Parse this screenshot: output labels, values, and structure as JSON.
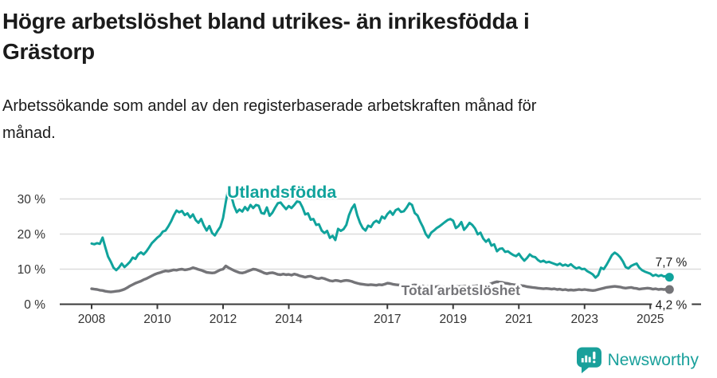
{
  "title_lines": [
    "Högre arbetslöshet bland utrikes- än inrikesfödda i",
    "Grästorp"
  ],
  "subtitle_lines": [
    "Arbetssökande som andel av den registerbaserade arbetskraften månad för",
    "månad."
  ],
  "branding": {
    "name": "Newsworthy"
  },
  "colors": {
    "foreign": "#10a39c",
    "total": "#747478",
    "grid": "#dcdcdc",
    "axis": "#3a3a3a",
    "axis_text": "#333333",
    "label_text": "#1b1b1b",
    "brand": "#19a09b"
  },
  "chart_data": {
    "type": "line",
    "x_start": 2008,
    "points_per_year": 12,
    "ylim": [
      0,
      33.5
    ],
    "grid": "horizontal",
    "yticks": [
      {
        "value": 0,
        "label": "0 %"
      },
      {
        "value": 10,
        "label": "10 %"
      },
      {
        "value": 20,
        "label": "20 %"
      },
      {
        "value": 30,
        "label": "30 %"
      }
    ],
    "xticks": [
      {
        "value": 2008,
        "label": "2008"
      },
      {
        "value": 2010,
        "label": "2010"
      },
      {
        "value": 2012,
        "label": "2012"
      },
      {
        "value": 2014,
        "label": "2014"
      },
      {
        "value": 2017,
        "label": "2017"
      },
      {
        "value": 2019,
        "label": "2019"
      },
      {
        "value": 2021,
        "label": "2021"
      },
      {
        "value": 2023,
        "label": "2023"
      },
      {
        "value": 2025,
        "label": "2025"
      }
    ],
    "series": [
      {
        "name": "Utlandsfödda",
        "color": "#10a39c",
        "line_width": 3,
        "label_year": 2012.12,
        "label_value": 30.3,
        "label_size": 21.5,
        "label_halo": 4,
        "end_label": "7,7 %",
        "values": [
          17.3,
          17.1,
          17.4,
          17.2,
          19.0,
          16.2,
          13.6,
          12.1,
          10.4,
          9.7,
          10.5,
          11.6,
          10.6,
          11.3,
          12.1,
          13.3,
          12.9,
          14.2,
          14.8,
          14.2,
          15.1,
          16.2,
          17.4,
          18.2,
          19.0,
          19.6,
          20.7,
          21.0,
          22.2,
          23.6,
          25.3,
          26.7,
          26.2,
          26.6,
          25.4,
          25.9,
          24.7,
          25.6,
          24.0,
          23.2,
          24.3,
          22.4,
          21.0,
          22.3,
          20.3,
          19.6,
          20.9,
          22.1,
          24.6,
          29.1,
          33.3,
          30.9,
          28.0,
          26.2,
          27.0,
          26.4,
          27.7,
          26.8,
          28.3,
          27.4,
          28.3,
          28.1,
          26.0,
          25.8,
          27.6,
          25.2,
          26.1,
          27.5,
          28.8,
          29.0,
          28.0,
          27.1,
          28.0,
          27.4,
          28.3,
          29.3,
          29.1,
          27.6,
          25.6,
          25.9,
          24.1,
          24.3,
          22.6,
          22.8,
          21.0,
          20.3,
          20.9,
          18.9,
          19.5,
          18.3,
          21.5,
          20.9,
          21.4,
          22.6,
          25.4,
          27.3,
          28.4,
          25.4,
          23.2,
          21.7,
          21.0,
          22.4,
          22.0,
          23.3,
          23.8,
          23.2,
          25.0,
          24.4,
          25.7,
          26.5,
          25.5,
          26.8,
          27.2,
          26.3,
          26.5,
          27.5,
          28.8,
          28.3,
          26.0,
          25.3,
          23.5,
          22.0,
          20.0,
          19.0,
          20.4,
          21.0,
          21.7,
          22.2,
          22.8,
          23.4,
          24.0,
          24.3,
          23.8,
          21.7,
          22.3,
          23.4,
          21.2,
          22.1,
          23.2,
          22.6,
          21.6,
          19.9,
          20.4,
          18.7,
          17.8,
          18.5,
          16.7,
          17.1,
          15.1,
          15.8,
          15.9,
          14.9,
          15.1,
          14.5,
          14.0,
          13.7,
          14.4,
          13.3,
          12.4,
          13.2,
          14.2,
          13.6,
          13.4,
          12.6,
          12.1,
          12.4,
          11.9,
          12.1,
          11.8,
          11.5,
          11.2,
          11.6,
          11.0,
          11.3,
          10.9,
          11.4,
          10.7,
          10.2,
          10.5,
          10.0,
          10.1,
          9.4,
          9.0,
          8.5,
          7.6,
          8.3,
          10.4,
          10.0,
          11.2,
          12.6,
          14.0,
          14.7,
          14.2,
          13.4,
          12.2,
          10.6,
          10.2,
          10.9,
          11.3,
          11.6,
          10.4,
          9.7,
          9.3,
          9.0,
          8.7,
          8.1,
          8.4,
          8.0,
          8.3,
          7.9,
          8.1,
          7.7
        ]
      },
      {
        "name": "Total arbetslöshet",
        "color": "#747478",
        "line_width": 3.4,
        "label_year": 2017.42,
        "label_value": 2.65,
        "label_size": 17.5,
        "label_halo": 6,
        "end_label": "4,2 %",
        "values": [
          4.4,
          4.3,
          4.2,
          4.0,
          3.9,
          3.7,
          3.6,
          3.5,
          3.6,
          3.7,
          3.8,
          4.0,
          4.3,
          4.7,
          5.2,
          5.6,
          6.0,
          6.3,
          6.6,
          7.0,
          7.3,
          7.7,
          8.1,
          8.5,
          8.8,
          9.0,
          9.3,
          9.5,
          9.4,
          9.6,
          9.8,
          9.7,
          9.9,
          10.0,
          9.8,
          9.9,
          10.1,
          10.4,
          10.2,
          9.9,
          9.7,
          9.4,
          9.1,
          9.0,
          8.9,
          9.0,
          9.4,
          9.8,
          10.0,
          10.9,
          10.4,
          10.0,
          9.6,
          9.3,
          9.0,
          8.9,
          9.1,
          9.4,
          9.7,
          10.0,
          9.9,
          9.6,
          9.3,
          8.9,
          8.7,
          8.9,
          9.0,
          8.8,
          8.5,
          8.4,
          8.6,
          8.4,
          8.5,
          8.3,
          8.6,
          8.4,
          8.1,
          7.9,
          7.7,
          7.9,
          8.0,
          7.7,
          7.4,
          7.3,
          7.5,
          7.3,
          7.0,
          6.7,
          6.6,
          6.8,
          6.7,
          6.5,
          6.7,
          6.8,
          6.7,
          6.5,
          6.2,
          6.0,
          5.8,
          5.7,
          5.6,
          5.5,
          5.6,
          5.5,
          5.4,
          5.6,
          5.5,
          5.7,
          6.0,
          5.9,
          5.7,
          5.6,
          5.5,
          5.4,
          5.6,
          5.5,
          5.3,
          5.4,
          5.5,
          5.4,
          5.3,
          5.2,
          5.0,
          5.1,
          5.0,
          4.9,
          5.0,
          5.1,
          5.0,
          4.9,
          5.0,
          5.1,
          5.2,
          5.1,
          5.0,
          5.1,
          5.2,
          5.1,
          5.0,
          5.1,
          5.2,
          5.3,
          5.2,
          5.3,
          5.5,
          5.6,
          5.9,
          6.2,
          6.4,
          6.3,
          6.2,
          6.0,
          5.9,
          5.7,
          5.6,
          5.5,
          5.4,
          5.3,
          5.2,
          5.0,
          4.9,
          4.8,
          4.7,
          4.6,
          4.5,
          4.4,
          4.5,
          4.4,
          4.3,
          4.4,
          4.2,
          4.3,
          4.1,
          4.2,
          4.0,
          4.1,
          4.0,
          4.1,
          4.2,
          4.1,
          4.2,
          4.1,
          4.0,
          3.9,
          4.0,
          4.2,
          4.4,
          4.6,
          4.8,
          4.9,
          5.0,
          5.1,
          5.0,
          4.9,
          4.7,
          4.6,
          4.7,
          4.8,
          4.6,
          4.5,
          4.3,
          4.4,
          4.5,
          4.6,
          4.5,
          4.3,
          4.4,
          4.2,
          4.3,
          4.2,
          4.3,
          4.2
        ]
      }
    ]
  }
}
